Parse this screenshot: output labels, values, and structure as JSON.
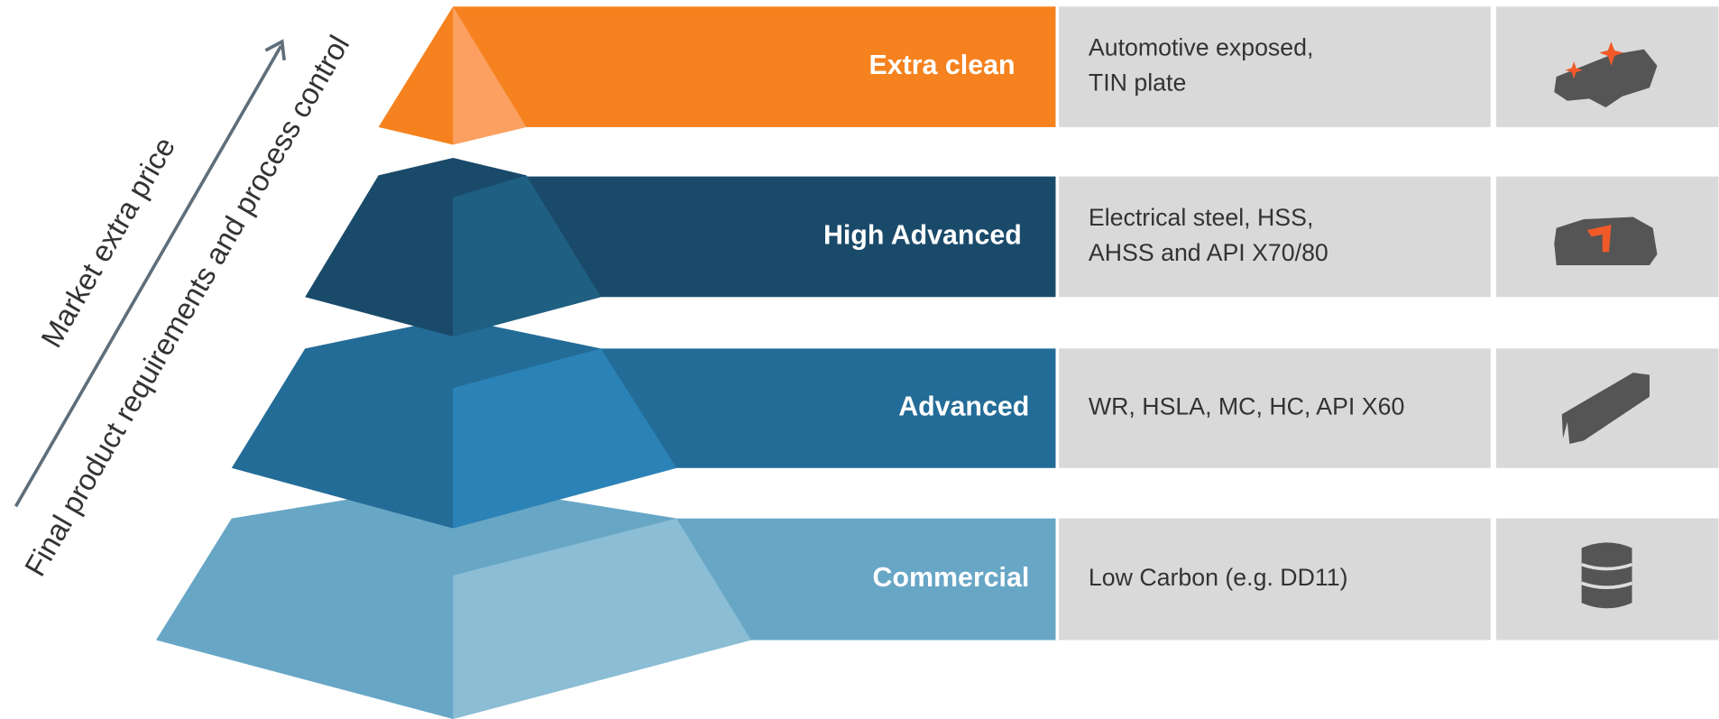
{
  "axis_labels": {
    "primary": "Market extra price",
    "secondary": "Final product requirements and process control"
  },
  "levels": [
    {
      "label": "Extra clean",
      "description": [
        "Automotive exposed,",
        "TIN plate"
      ]
    },
    {
      "label": "High Advanced",
      "description": [
        "Electrical steel, HSS,",
        "AHSS and API X70/80"
      ]
    },
    {
      "label": "Advanced",
      "description": [
        "WR, HSLA, MC, HC, API X60"
      ]
    },
    {
      "label": "Commercial",
      "description": [
        "Low Carbon (e.g. DD11)"
      ]
    }
  ]
}
